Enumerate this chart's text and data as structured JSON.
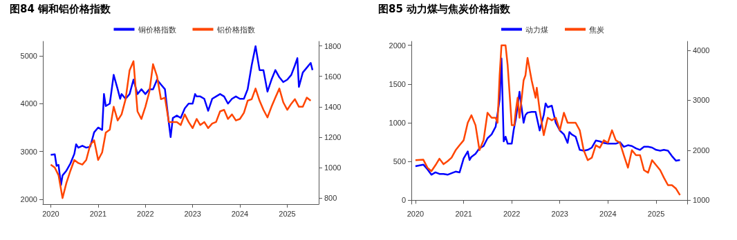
{
  "chart_data": [
    {
      "type": "line",
      "title": "图84 铜和铝价格指数",
      "legend": "top",
      "grid": false,
      "marker": "none",
      "line_style": "solid",
      "xlim": [
        "2019-11-01",
        "2025-09-01"
      ],
      "xticks": [
        "2020",
        "2021",
        "2022",
        "2023",
        "2024",
        "2025"
      ],
      "ylim": [
        1900,
        5300
      ],
      "yticks": [
        2000,
        3000,
        4000,
        5000
      ],
      "y2lim": [
        760,
        1830
      ],
      "y2ticks": [
        800,
        1000,
        1200,
        1400,
        1600,
        1800
      ],
      "series": [
        {
          "name": "铜价格指数",
          "color": "#0000ff",
          "x": [
            "2020-01",
            "2020-02",
            "2020-02-15",
            "2020-03",
            "2020-03-20",
            "2020-04",
            "2020-05",
            "2020-06",
            "2020-07",
            "2020-07-15",
            "2020-08",
            "2020-09",
            "2020-10",
            "2020-11",
            "2020-12",
            "2021-01",
            "2021-02",
            "2021-02-15",
            "2021-03",
            "2021-04",
            "2021-05",
            "2021-06",
            "2021-06-20",
            "2021-07",
            "2021-08",
            "2021-09",
            "2021-10",
            "2021-11",
            "2021-12",
            "2022-01",
            "2022-02",
            "2022-03",
            "2022-04",
            "2022-05",
            "2022-06",
            "2022-07",
            "2022-07-15",
            "2022-08",
            "2022-09",
            "2022-10",
            "2022-11",
            "2022-12",
            "2023-01",
            "2023-01-20",
            "2023-02",
            "2023-03",
            "2023-04",
            "2023-05",
            "2023-06",
            "2023-07",
            "2023-08",
            "2023-09",
            "2023-10",
            "2023-11",
            "2023-12",
            "2024-01",
            "2024-02",
            "2024-03",
            "2024-04",
            "2024-05",
            "2024-06",
            "2024-07",
            "2024-08",
            "2024-09",
            "2024-10",
            "2024-11",
            "2024-12",
            "2025-01",
            "2025-02",
            "2025-03",
            "2025-03-20",
            "2025-04",
            "2025-05",
            "2025-06",
            "2025-07",
            "2025-07-15"
          ],
          "values": [
            2930,
            2940,
            2700,
            2720,
            2300,
            2500,
            2600,
            2750,
            2950,
            3150,
            3080,
            3120,
            3080,
            3100,
            3400,
            3500,
            3450,
            4200,
            3950,
            4000,
            4600,
            4300,
            4100,
            4200,
            4100,
            4200,
            4500,
            4200,
            4300,
            4200,
            4300,
            4300,
            4500,
            4400,
            4300,
            3600,
            3300,
            3700,
            3750,
            3700,
            3900,
            4000,
            4000,
            4200,
            4150,
            4150,
            4100,
            3850,
            4100,
            4150,
            4200,
            4150,
            4000,
            4100,
            4150,
            4100,
            4100,
            4300,
            4800,
            5200,
            4700,
            4700,
            4250,
            4500,
            4700,
            4550,
            4450,
            4500,
            4600,
            4800,
            4950,
            4350,
            4650,
            4750,
            4850,
            4700
          ]
        },
        {
          "name": "铝价格指数",
          "color": "#ff4500",
          "axis": "y2",
          "x": [
            "2020-01",
            "2020-02",
            "2020-03",
            "2020-04",
            "2020-05",
            "2020-06",
            "2020-07",
            "2020-08",
            "2020-09",
            "2020-10",
            "2020-11",
            "2020-12",
            "2021-01",
            "2021-02",
            "2021-03",
            "2021-04",
            "2021-05",
            "2021-06",
            "2021-07",
            "2021-08",
            "2021-09",
            "2021-10",
            "2021-11",
            "2021-12",
            "2022-01",
            "2022-02",
            "2022-03",
            "2022-04",
            "2022-05",
            "2022-06",
            "2022-07",
            "2022-08",
            "2022-09",
            "2022-10",
            "2022-11",
            "2022-12",
            "2023-01",
            "2023-02",
            "2023-03",
            "2023-04",
            "2023-05",
            "2023-06",
            "2023-07",
            "2023-08",
            "2023-09",
            "2023-10",
            "2023-11",
            "2023-12",
            "2024-01",
            "2024-02",
            "2024-03",
            "2024-04",
            "2024-05",
            "2024-06",
            "2024-07",
            "2024-08",
            "2024-09",
            "2024-10",
            "2024-11",
            "2024-12",
            "2025-01",
            "2025-02",
            "2025-03",
            "2025-04",
            "2025-05",
            "2025-06",
            "2025-07"
          ],
          "values": [
            1020,
            1000,
            950,
            800,
            900,
            980,
            1050,
            1030,
            1020,
            1050,
            1150,
            1180,
            1050,
            1100,
            1230,
            1250,
            1400,
            1310,
            1350,
            1450,
            1640,
            1700,
            1370,
            1320,
            1400,
            1500,
            1680,
            1600,
            1450,
            1460,
            1300,
            1300,
            1300,
            1280,
            1350,
            1300,
            1260,
            1320,
            1280,
            1300,
            1260,
            1290,
            1300,
            1370,
            1380,
            1320,
            1350,
            1310,
            1320,
            1360,
            1440,
            1450,
            1520,
            1440,
            1380,
            1330,
            1400,
            1460,
            1520,
            1430,
            1380,
            1420,
            1450,
            1400,
            1400,
            1460,
            1440
          ]
        }
      ]
    },
    {
      "type": "line",
      "title": "图85 动力煤与焦炭价格指数",
      "legend": "top",
      "grid": false,
      "marker": "none",
      "line_style": "solid",
      "xlim": [
        "2019-12-01",
        "2025-08-25"
      ],
      "xticks": [
        "2020",
        "2021",
        "2022",
        "2023",
        "2024",
        "2025"
      ],
      "ylim": [
        -50,
        2050
      ],
      "yticks": [
        0,
        500,
        1000,
        1500,
        2000
      ],
      "y2lim": [
        920,
        4180
      ],
      "y2ticks": [
        1000,
        2000,
        3000,
        4000
      ],
      "series": [
        {
          "name": "动力煤",
          "color": "#0000ff",
          "x": [
            "2020-01",
            "2020-03",
            "2020-04",
            "2020-05",
            "2020-06",
            "2020-07",
            "2020-08",
            "2020-09",
            "2020-10",
            "2020-11",
            "2020-12",
            "2021-01",
            "2021-02",
            "2021-02-15",
            "2021-03",
            "2021-04",
            "2021-05",
            "2021-06",
            "2021-07",
            "2021-08",
            "2021-09",
            "2021-10",
            "2021-10-15",
            "2021-11",
            "2021-11-15",
            "2021-12",
            "2022-01",
            "2022-01-15",
            "2022-02",
            "2022-03",
            "2022-04",
            "2022-04-15",
            "2022-05",
            "2022-06",
            "2022-07",
            "2022-08",
            "2022-09",
            "2022-09-15",
            "2022-10",
            "2022-11",
            "2022-12",
            "2023-01",
            "2023-02",
            "2023-03",
            "2023-03-15",
            "2023-04",
            "2023-05",
            "2023-06",
            "2023-07",
            "2023-08",
            "2023-09",
            "2023-10",
            "2023-11",
            "2023-12",
            "2024-01",
            "2024-03",
            "2024-04",
            "2024-05",
            "2024-06",
            "2024-07",
            "2024-08",
            "2024-09",
            "2024-10",
            "2024-11",
            "2024-12",
            "2025-01",
            "2025-02",
            "2025-03",
            "2025-04",
            "2025-05",
            "2025-06",
            "2025-07"
          ],
          "values": [
            440,
            460,
            400,
            330,
            360,
            340,
            340,
            330,
            350,
            370,
            360,
            540,
            630,
            520,
            560,
            600,
            670,
            700,
            800,
            850,
            950,
            1300,
            1830,
            760,
            820,
            730,
            730,
            900,
            1050,
            1400,
            1000,
            1100,
            1130,
            1140,
            1140,
            900,
            1100,
            1250,
            1200,
            1220,
            1000,
            900,
            850,
            740,
            880,
            850,
            820,
            650,
            640,
            650,
            680,
            770,
            760,
            740,
            730,
            730,
            750,
            690,
            710,
            700,
            670,
            650,
            690,
            690,
            680,
            650,
            640,
            650,
            640,
            570,
            510,
            520
          ]
        },
        {
          "name": "焦炭",
          "color": "#ff4500",
          "axis": "y2",
          "x": [
            "2020-01",
            "2020-03",
            "2020-04",
            "2020-05",
            "2020-06",
            "2020-07",
            "2020-08",
            "2020-09",
            "2020-10",
            "2020-11",
            "2020-12",
            "2021-01",
            "2021-02",
            "2021-03",
            "2021-04",
            "2021-05",
            "2021-06",
            "2021-07",
            "2021-08",
            "2021-09",
            "2021-09-15",
            "2021-10",
            "2021-10-15",
            "2021-11-15",
            "2021-12",
            "2022-01",
            "2022-01-20",
            "2022-02",
            "2022-02-15",
            "2022-03",
            "2022-04",
            "2022-04-15",
            "2022-05",
            "2022-06",
            "2022-07",
            "2022-07-10",
            "2022-08",
            "2022-09",
            "2022-10",
            "2022-11",
            "2022-12",
            "2023-01",
            "2023-02",
            "2023-03",
            "2023-05",
            "2023-06",
            "2023-07",
            "2023-08",
            "2023-09",
            "2023-10",
            "2023-11",
            "2023-12",
            "2024-01",
            "2024-02",
            "2024-03",
            "2024-04",
            "2024-05",
            "2024-06",
            "2024-07",
            "2024-08",
            "2024-09",
            "2024-10",
            "2024-11",
            "2024-12",
            "2025-01",
            "2025-02",
            "2025-03",
            "2025-04",
            "2025-05",
            "2025-06",
            "2025-07"
          ],
          "values": [
            1800,
            1810,
            1650,
            1580,
            1700,
            1830,
            1720,
            1780,
            1850,
            2000,
            2100,
            2200,
            2550,
            2700,
            2500,
            2000,
            2200,
            2750,
            2650,
            2650,
            2550,
            3500,
            4100,
            4100,
            3700,
            2500,
            2500,
            2800,
            3050,
            2650,
            3400,
            3500,
            3850,
            3400,
            3050,
            3250,
            2800,
            2300,
            2650,
            2600,
            2650,
            2400,
            2750,
            2550,
            2550,
            2400,
            2000,
            1800,
            1850,
            2100,
            2050,
            2200,
            2150,
            2400,
            2200,
            2150,
            1900,
            1650,
            2000,
            1900,
            1900,
            1600,
            1550,
            1800,
            1700,
            1600,
            1450,
            1300,
            1300,
            1230,
            1100
          ]
        }
      ]
    }
  ]
}
